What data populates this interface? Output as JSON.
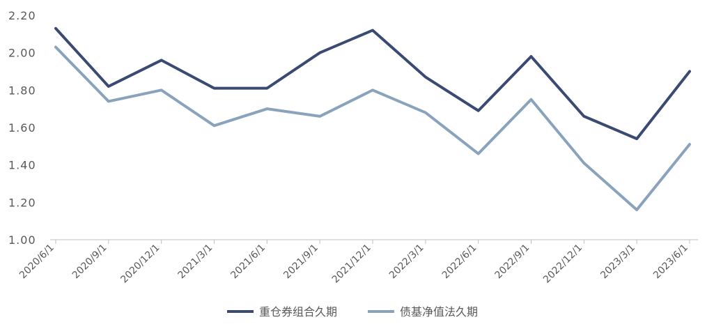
{
  "chart_data": {
    "type": "line",
    "categories": [
      "2020/6/1",
      "2020/9/1",
      "2020/12/1",
      "2021/3/1",
      "2021/6/1",
      "2021/9/1",
      "2021/12/1",
      "2022/3/1",
      "2022/6/1",
      "2022/9/1",
      "2022/12/1",
      "2023/3/1",
      "2023/6/1"
    ],
    "series": [
      {
        "name": "重仓券组合久期",
        "color": "#3a4a72",
        "values": [
          2.13,
          1.82,
          1.96,
          1.81,
          1.81,
          2.0,
          2.12,
          1.87,
          1.69,
          1.98,
          1.66,
          1.54,
          1.9
        ]
      },
      {
        "name": "债基净值法久期",
        "color": "#8aa3bd",
        "values": [
          2.03,
          1.74,
          1.8,
          1.61,
          1.7,
          1.66,
          1.8,
          1.68,
          1.46,
          1.75,
          1.41,
          1.16,
          1.51
        ]
      }
    ],
    "y_ticks": [
      "1.00",
      "1.20",
      "1.40",
      "1.60",
      "1.80",
      "2.00",
      "2.20"
    ],
    "ylim": [
      1.0,
      2.2
    ],
    "grid": false,
    "legend": "bottom"
  }
}
